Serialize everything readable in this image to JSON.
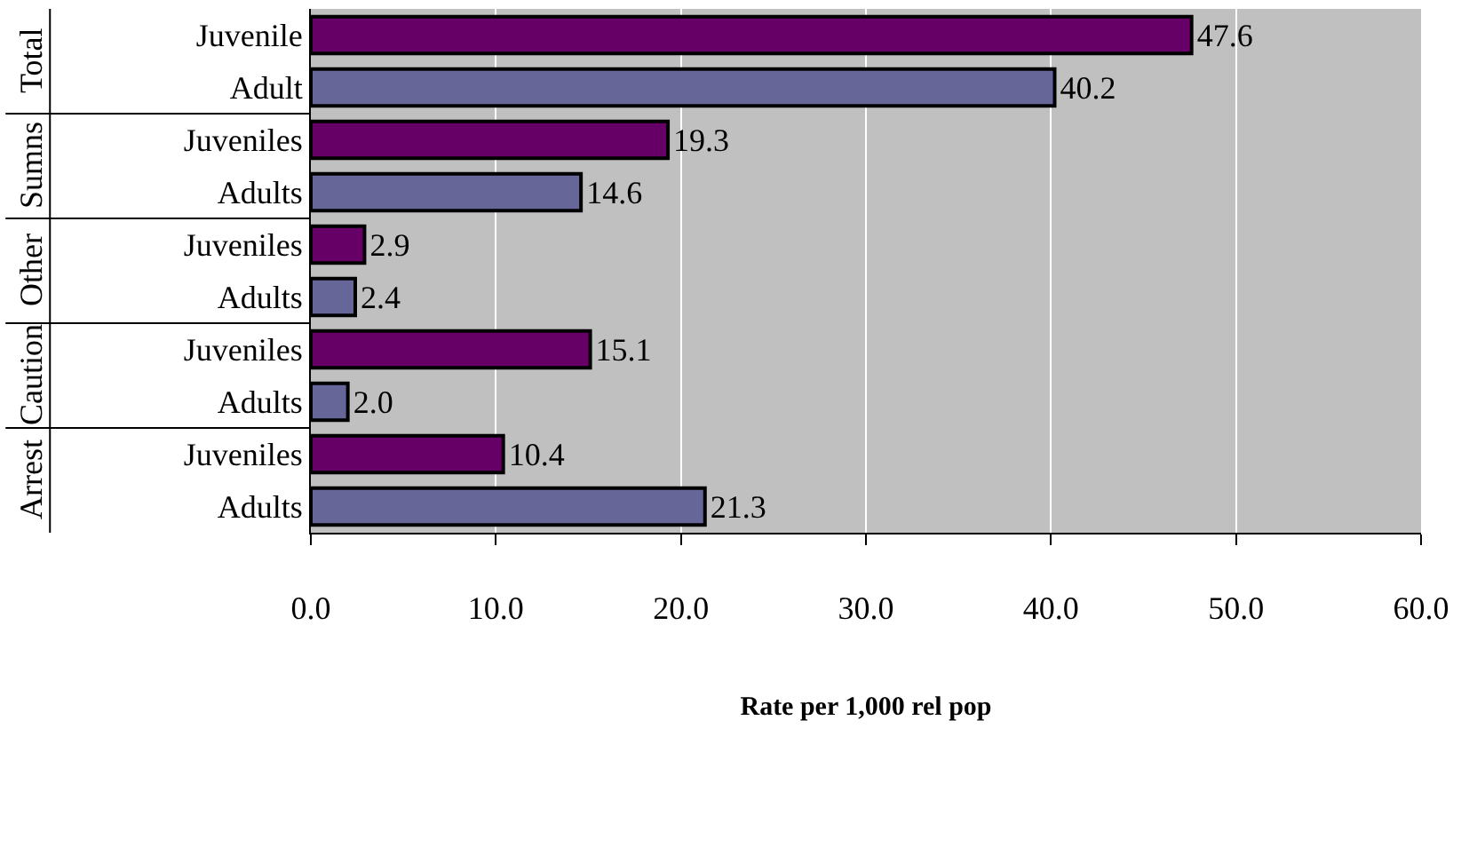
{
  "chart_data": {
    "type": "bar",
    "orientation": "horizontal",
    "xlabel": "Rate per 1,000 rel pop",
    "categories": [
      "Juvenile",
      "Adult",
      "Juveniles",
      "Adults",
      "Juveniles",
      "Adults",
      "Juveniles",
      "Adults",
      "Juveniles",
      "Adults"
    ],
    "values": [
      47.6,
      40.2,
      19.3,
      14.6,
      2.9,
      2.4,
      15.1,
      2.0,
      10.4,
      21.3
    ],
    "colors": [
      "#660066",
      "#666699",
      "#660066",
      "#666699",
      "#660066",
      "#666699",
      "#660066",
      "#666699",
      "#660066",
      "#666699"
    ],
    "value_labels": [
      "47.6",
      "40.2",
      "19.3",
      "14.6",
      "2.9",
      "2.4",
      "15.1",
      "2.0",
      "10.4",
      "21.3"
    ],
    "annotations": [
      "Total",
      "Sumns",
      "Other",
      "Caution",
      "Arrest"
    ],
    "xlim": [
      0,
      60
    ],
    "xticks": [
      {
        "value": 0,
        "label": "0.0"
      },
      {
        "value": 10,
        "label": "10.0"
      },
      {
        "value": 20,
        "label": "20.0"
      },
      {
        "value": 30,
        "label": "30.0"
      },
      {
        "value": 40,
        "label": "40.0"
      },
      {
        "value": 50,
        "label": "50.0"
      },
      {
        "value": 60,
        "label": "60.0"
      }
    ],
    "grid": "x"
  }
}
